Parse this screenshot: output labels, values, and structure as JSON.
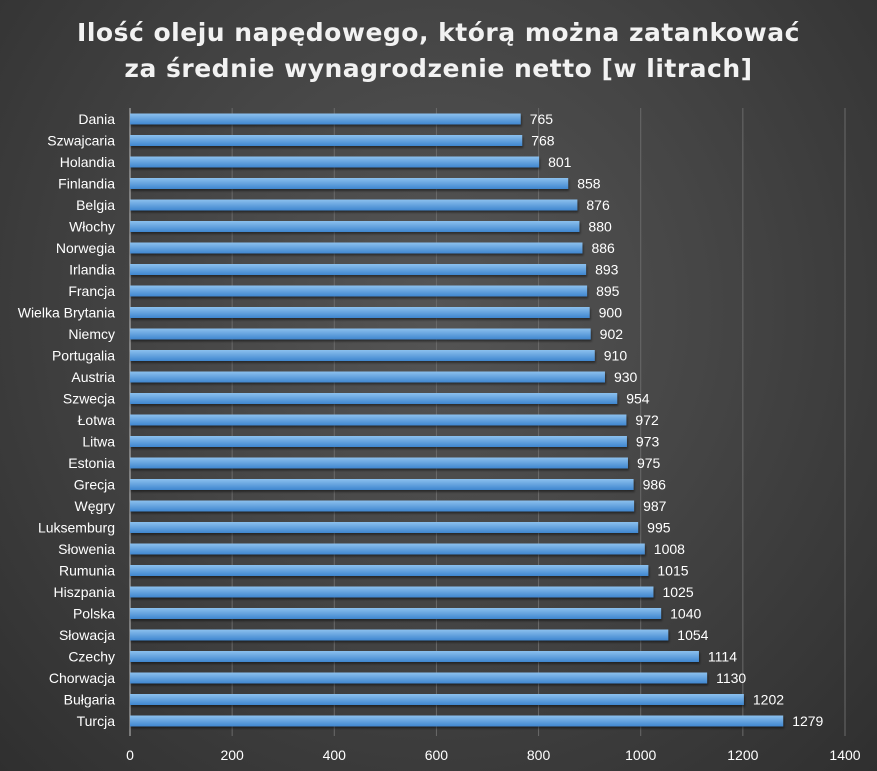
{
  "chart_data": {
    "type": "bar",
    "orientation": "horizontal",
    "title": [
      "Ilość oleju napędowego, którą można zatankować",
      "za średnie wynagrodzenie netto [w litrach]"
    ],
    "categories": [
      "Dania",
      "Szwajcaria",
      "Holandia",
      "Finlandia",
      "Belgia",
      "Włochy",
      "Norwegia",
      "Irlandia",
      "Francja",
      "Wielka Brytania",
      "Niemcy",
      "Portugalia",
      "Austria",
      "Szwecja",
      "Łotwa",
      "Litwa",
      "Estonia",
      "Grecja",
      "Węgry",
      "Luksemburg",
      "Słowenia",
      "Rumunia",
      "Hiszpania",
      "Polska",
      "Słowacja",
      "Czechy",
      "Chorwacja",
      "Bułgaria",
      "Turcja"
    ],
    "values": [
      765,
      768,
      801,
      858,
      876,
      880,
      886,
      893,
      895,
      900,
      902,
      910,
      930,
      954,
      972,
      973,
      975,
      986,
      987,
      995,
      1008,
      1015,
      1025,
      1040,
      1054,
      1114,
      1130,
      1202,
      1279
    ],
    "xlim": [
      0,
      1400
    ],
    "xticks": [
      "0",
      "200",
      "400",
      "600",
      "800",
      "1000",
      "1200",
      "1400"
    ],
    "grid": "vertical",
    "legend": "none",
    "colors": {
      "bar_top": "#8cc0ee",
      "bar_bottom": "#3f86cf",
      "text": "#ffffff",
      "grid": "#6a6a6a",
      "background": "#4a4a4a"
    }
  }
}
